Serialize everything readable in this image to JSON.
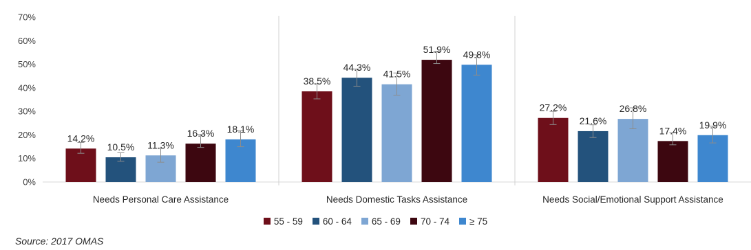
{
  "chart_data": {
    "type": "bar",
    "categories": [
      "Needs Personal Care Assistance",
      "Needs Domestic Tasks Assistance",
      "Needs Social/Emotional Support Assistance"
    ],
    "series": [
      {
        "name": "55 - 59",
        "color": "#6e0f1a",
        "values": [
          14.2,
          38.5,
          27.2
        ],
        "value_labels": [
          "14.2%",
          "38.5%",
          "27.2%"
        ],
        "error": [
          [
            12.2,
            16.8
          ],
          [
            35.3,
            41.7
          ],
          [
            24.4,
            30.0
          ]
        ]
      },
      {
        "name": "60 - 64",
        "color": "#23527c",
        "values": [
          10.5,
          44.3,
          21.6
        ],
        "value_labels": [
          "10.5%",
          "44.3%",
          "21.6%"
        ],
        "error": [
          [
            8.8,
            12.4
          ],
          [
            40.7,
            48.0
          ],
          [
            18.9,
            24.3
          ]
        ]
      },
      {
        "name": "65 - 69",
        "color": "#7ea6d3",
        "values": [
          11.3,
          41.5,
          26.8
        ],
        "value_labels": [
          "11.3%",
          "41.5%",
          "26.8%"
        ],
        "error": [
          [
            8.4,
            14.3
          ],
          [
            36.9,
            46.3
          ],
          [
            22.6,
            31.5
          ]
        ]
      },
      {
        "name": "70 - 74",
        "color": "#3d0710",
        "values": [
          16.3,
          51.9,
          17.4
        ],
        "value_labels": [
          "16.3%",
          "51.9%",
          "17.4%"
        ],
        "error": [
          [
            14.7,
            20.2
          ],
          [
            50.3,
            55.5
          ],
          [
            15.8,
            21.0
          ]
        ]
      },
      {
        "name": "≥ 75",
        "color": "#3e87cf",
        "values": [
          18.1,
          49.8,
          19.9
        ],
        "value_labels": [
          "18.1%",
          "49.8%",
          "19.9%"
        ],
        "error": [
          [
            15.0,
            21.8
          ],
          [
            45.4,
            54.0
          ],
          [
            16.6,
            23.7
          ]
        ]
      }
    ],
    "yticks": [
      "0%",
      "10%",
      "20%",
      "30%",
      "40%",
      "50%",
      "60%",
      "70%"
    ],
    "ylim": [
      0,
      70
    ],
    "grid": false,
    "legend_position": "bottom",
    "source": "Source: 2017 OMAS"
  }
}
